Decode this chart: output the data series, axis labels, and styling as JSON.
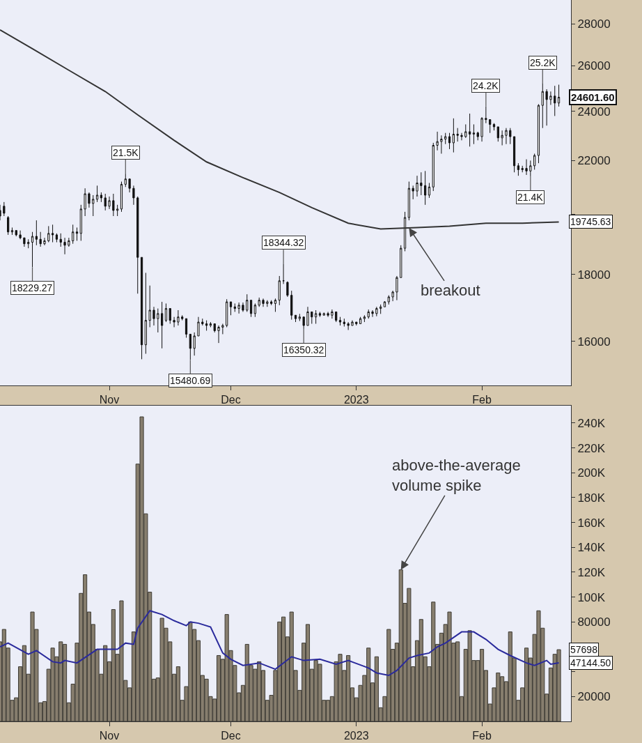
{
  "chart_data": [
    {
      "type": "candlestick",
      "log": true,
      "x": [
        "2022-10-05",
        "2022-10-06",
        "2022-10-07",
        "2022-10-08",
        "2022-10-09",
        "2022-10-10",
        "2022-10-11",
        "2022-10-12",
        "2022-10-13",
        "2022-10-14",
        "2022-10-15",
        "2022-10-16",
        "2022-10-17",
        "2022-10-18",
        "2022-10-19",
        "2022-10-20",
        "2022-10-21",
        "2022-10-22",
        "2022-10-23",
        "2022-10-24",
        "2022-10-25",
        "2022-10-26",
        "2022-10-27",
        "2022-10-28",
        "2022-10-29",
        "2022-10-30",
        "2022-10-31",
        "2022-11-01",
        "2022-11-02",
        "2022-11-03",
        "2022-11-04",
        "2022-11-05",
        "2022-11-06",
        "2022-11-07",
        "2022-11-08",
        "2022-11-09",
        "2022-11-10",
        "2022-11-11",
        "2022-11-12",
        "2022-11-13",
        "2022-11-14",
        "2022-11-15",
        "2022-11-16",
        "2022-11-17",
        "2022-11-18",
        "2022-11-19",
        "2022-11-20",
        "2022-11-21",
        "2022-11-22",
        "2022-11-23",
        "2022-11-24",
        "2022-11-25",
        "2022-11-26",
        "2022-11-27",
        "2022-11-28",
        "2022-11-29",
        "2022-11-30",
        "2022-12-01",
        "2022-12-02",
        "2022-12-03",
        "2022-12-04",
        "2022-12-05",
        "2022-12-06",
        "2022-12-07",
        "2022-12-08",
        "2022-12-09",
        "2022-12-10",
        "2022-12-11",
        "2022-12-12",
        "2022-12-13",
        "2022-12-14",
        "2022-12-15",
        "2022-12-16",
        "2022-12-17",
        "2022-12-18",
        "2022-12-19",
        "2022-12-20",
        "2022-12-21",
        "2022-12-22",
        "2022-12-23",
        "2022-12-24",
        "2022-12-25",
        "2022-12-26",
        "2022-12-27",
        "2022-12-28",
        "2022-12-29",
        "2022-12-30",
        "2022-12-31",
        "2023-01-01",
        "2023-01-02",
        "2023-01-03",
        "2023-01-04",
        "2023-01-05",
        "2023-01-06",
        "2023-01-07",
        "2023-01-08",
        "2023-01-09",
        "2023-01-10",
        "2023-01-11",
        "2023-01-12",
        "2023-01-13",
        "2023-01-14",
        "2023-01-15",
        "2023-01-16",
        "2023-01-17",
        "2023-01-18",
        "2023-01-19",
        "2023-01-20",
        "2023-01-21",
        "2023-01-22",
        "2023-01-23",
        "2023-01-24",
        "2023-01-25",
        "2023-01-26",
        "2023-01-27",
        "2023-01-28",
        "2023-01-29",
        "2023-01-30",
        "2023-01-31",
        "2023-02-01",
        "2023-02-02",
        "2023-02-03",
        "2023-02-04",
        "2023-02-05",
        "2023-02-06",
        "2023-02-07",
        "2023-02-08",
        "2023-02-09",
        "2023-02-10",
        "2023-02-11",
        "2023-02-12",
        "2023-02-13",
        "2023-02-14",
        "2023-02-15",
        "2023-02-16",
        "2023-02-17",
        "2023-02-18",
        "2023-02-19",
        "2023-02-20"
      ],
      "ohlc": [
        [
          20150,
          20350,
          19800,
          19950
        ],
        [
          20300,
          20450,
          19950,
          20050
        ],
        [
          19900,
          19950,
          19300,
          19400
        ],
        [
          19400,
          19550,
          19300,
          19450
        ],
        [
          19450,
          19450,
          19250,
          19300
        ],
        [
          19300,
          19450,
          19150,
          19200
        ],
        [
          19200,
          19200,
          18900,
          19000
        ],
        [
          19000,
          19150,
          18850,
          19050
        ],
        [
          19050,
          19400,
          18229.27,
          19250
        ],
        [
          19250,
          19800,
          18950,
          19150
        ],
        [
          19150,
          19400,
          18900,
          19000
        ],
        [
          19000,
          19200,
          18950,
          19100
        ],
        [
          19100,
          19600,
          19050,
          19350
        ],
        [
          19350,
          19650,
          19050,
          19300
        ],
        [
          19300,
          19350,
          19050,
          19150
        ],
        [
          19150,
          19350,
          18900,
          19050
        ],
        [
          19050,
          19200,
          18650,
          18950
        ],
        [
          18950,
          19200,
          18900,
          19100
        ],
        [
          19100,
          19650,
          19000,
          19400
        ],
        [
          19400,
          19550,
          19100,
          19350
        ],
        [
          19350,
          20350,
          19100,
          20200
        ],
        [
          20200,
          20950,
          19950,
          20750
        ],
        [
          20750,
          20800,
          20250,
          20400
        ],
        [
          20400,
          20700,
          19950,
          20550
        ],
        [
          20550,
          21050,
          20450,
          20700
        ],
        [
          20700,
          20800,
          20450,
          20600
        ],
        [
          20600,
          20750,
          20150,
          20300
        ],
        [
          20300,
          20650,
          20200,
          20500
        ],
        [
          20500,
          20750,
          19950,
          20150
        ],
        [
          20150,
          20350,
          19950,
          20200
        ],
        [
          20200,
          21200,
          20100,
          21100
        ],
        [
          21100,
          21500,
          21000,
          21300
        ],
        [
          21300,
          21300,
          20800,
          20950
        ],
        [
          20950,
          21050,
          20350,
          20600
        ],
        [
          20600,
          20650,
          17400,
          18550
        ],
        [
          18550,
          18550,
          15500,
          15900
        ],
        [
          15900,
          18050,
          15650,
          16600
        ],
        [
          16600,
          17650,
          16400,
          16900
        ],
        [
          16900,
          17000,
          16450,
          16650
        ],
        [
          16650,
          16950,
          16250,
          16800
        ],
        [
          16800,
          17150,
          15800,
          16450
        ],
        [
          16600,
          17100,
          16550,
          16950
        ],
        [
          16950,
          16950,
          16500,
          16600
        ],
        [
          16600,
          16700,
          16400,
          16550
        ],
        [
          16550,
          16900,
          16450,
          16700
        ],
        [
          16700,
          16750,
          16600,
          16650
        ],
        [
          16650,
          16650,
          16100,
          16200
        ],
        [
          16200,
          16200,
          15480.69,
          15800
        ],
        [
          15800,
          16250,
          15600,
          16150
        ],
        [
          16150,
          16700,
          16150,
          16550
        ],
        [
          16550,
          16650,
          16450,
          16500
        ],
        [
          16500,
          16600,
          16300,
          16450
        ],
        [
          16450,
          16550,
          16400,
          16500
        ],
        [
          16500,
          16500,
          16250,
          16300
        ],
        [
          16300,
          16450,
          15950,
          16400
        ],
        [
          16400,
          16500,
          16200,
          16450
        ],
        [
          16450,
          17230,
          16400,
          17150
        ],
        [
          17150,
          17150,
          16750,
          17000
        ],
        [
          17000,
          17100,
          16850,
          16950
        ],
        [
          16950,
          17130,
          16800,
          17050
        ],
        [
          17050,
          17130,
          16850,
          16900
        ],
        [
          16900,
          17380,
          16850,
          17200
        ],
        [
          17200,
          17200,
          16700,
          16800
        ],
        [
          16800,
          17100,
          16700,
          17050
        ],
        [
          17050,
          17280,
          17000,
          17200
        ],
        [
          17200,
          17250,
          17000,
          17100
        ],
        [
          17100,
          17200,
          17000,
          17150
        ],
        [
          17150,
          17200,
          17050,
          17100
        ],
        [
          17100,
          17250,
          16850,
          17200
        ],
        [
          17200,
          17950,
          17050,
          17800
        ],
        [
          17800,
          18344.32,
          17700,
          17800
        ],
        [
          17750,
          17780,
          17300,
          17350
        ],
        [
          17350,
          17490,
          16620,
          16750
        ],
        [
          16750,
          16750,
          16550,
          16650
        ],
        [
          16650,
          16790,
          16580,
          16700
        ],
        [
          16700,
          16700,
          16350.32,
          16450
        ],
        [
          16450,
          17000,
          16450,
          16850
        ],
        [
          16850,
          16850,
          16500,
          16700
        ],
        [
          16700,
          16900,
          16500,
          16800
        ],
        [
          16800,
          16850,
          16700,
          16750
        ],
        [
          16750,
          16830,
          16750,
          16800
        ],
        [
          16800,
          16850,
          16700,
          16750
        ],
        [
          16750,
          16920,
          16650,
          16850
        ],
        [
          16850,
          16850,
          16550,
          16600
        ],
        [
          16600,
          16700,
          16450,
          16550
        ],
        [
          16550,
          16650,
          16420,
          16500
        ],
        [
          16500,
          16550,
          16320,
          16450
        ],
        [
          16450,
          16600,
          16450,
          16550
        ],
        [
          16550,
          16550,
          16450,
          16500
        ],
        [
          16500,
          16700,
          16500,
          16650
        ],
        [
          16650,
          16750,
          16550,
          16700
        ],
        [
          16700,
          16920,
          16650,
          16850
        ],
        [
          16850,
          16900,
          16700,
          16800
        ],
        [
          16800,
          17000,
          16720,
          16950
        ],
        [
          16950,
          17070,
          16790,
          17000
        ],
        [
          17000,
          17170,
          17000,
          17150
        ],
        [
          17150,
          17350,
          17070,
          17300
        ],
        [
          17300,
          17490,
          17170,
          17450
        ],
        [
          17450,
          17950,
          17200,
          17900
        ],
        [
          17900,
          18950,
          17900,
          18850
        ],
        [
          18850,
          20100,
          18750,
          19900
        ],
        [
          19900,
          21200,
          19800,
          20950
        ],
        [
          20950,
          21050,
          20550,
          20850
        ],
        [
          20850,
          21420,
          20650,
          21150
        ],
        [
          21150,
          21550,
          20700,
          21050
        ],
        [
          21050,
          21600,
          20350,
          20700
        ],
        [
          20700,
          21150,
          20600,
          21000
        ],
        [
          21000,
          22700,
          20850,
          22600
        ],
        [
          22600,
          23150,
          22400,
          22750
        ],
        [
          22750,
          23000,
          22270,
          22850
        ],
        [
          22850,
          23100,
          22650,
          22950
        ],
        [
          22950,
          23100,
          22450,
          22700
        ],
        [
          22700,
          23700,
          22320,
          23050
        ],
        [
          23050,
          23300,
          22750,
          23000
        ],
        [
          23000,
          23100,
          22800,
          22950
        ],
        [
          22950,
          23450,
          22900,
          23150
        ],
        [
          23150,
          23900,
          22550,
          23050
        ],
        [
          23050,
          23450,
          22650,
          23100
        ],
        [
          23100,
          23150,
          22800,
          22950
        ],
        [
          22950,
          23750,
          22750,
          23700
        ],
        [
          23700,
          24200,
          23500,
          23650
        ],
        [
          23650,
          23650,
          23100,
          23450
        ],
        [
          23450,
          23500,
          23200,
          23350
        ],
        [
          23350,
          23350,
          22750,
          22900
        ],
        [
          22900,
          23200,
          22600,
          23000
        ],
        [
          23000,
          23300,
          22650,
          23200
        ],
        [
          23200,
          23300,
          22650,
          22950
        ],
        [
          22950,
          22950,
          21550,
          21800
        ],
        [
          21800,
          21900,
          21420,
          21650
        ],
        [
          21650,
          21800,
          21550,
          21700
        ],
        [
          21700,
          22050,
          21450,
          21600
        ],
        [
          21600,
          22000,
          21400,
          21800
        ],
        [
          21800,
          22270,
          21650,
          22200
        ],
        [
          22200,
          24300,
          21900,
          24250
        ],
        [
          24250,
          25200,
          23300,
          24850
        ],
        [
          24850,
          24950,
          23400,
          24500
        ],
        [
          24500,
          24850,
          24270,
          24650
        ],
        [
          24650,
          25100,
          23800,
          24350
        ],
        [
          24350,
          25150,
          24200,
          24601.6
        ]
      ],
      "series": [
        {
          "type": "line",
          "color": "#333333",
          "x": [
            "2022-10-05",
            "2022-10-13",
            "2022-10-22",
            "2022-10-31",
            "2022-11-08",
            "2022-11-17",
            "2022-11-25",
            "2022-12-04",
            "2022-12-13",
            "2022-12-21",
            "2022-12-30",
            "2023-01-07",
            "2023-01-16",
            "2023-01-24",
            "2023-02-02",
            "2023-02-11",
            "2023-02-20"
          ],
          "values": [
            27700,
            26800,
            25800,
            24850,
            23850,
            22800,
            21950,
            21350,
            20800,
            20250,
            19700,
            19500,
            19550,
            19600,
            19700,
            19700,
            19745.63
          ]
        }
      ],
      "xlim": [
        "2022-10-05",
        "2023-02-23"
      ],
      "xticks": [
        {
          "value": "2022-11-01",
          "label": "Nov"
        },
        {
          "value": "2022-12-01",
          "label": "Dec"
        },
        {
          "value": "2023-01-01",
          "label": "2023"
        },
        {
          "value": "2023-02-01",
          "label": "Feb"
        }
      ],
      "ylim": [
        14800,
        29200
      ],
      "yticks": [
        16000,
        18000,
        {
          "value": 20000,
          "label": null
        },
        22000,
        24000,
        26000,
        28000
      ],
      "annotations": [
        {
          "text": "18229.27",
          "x": "2022-10-13",
          "y": 18229.27
        },
        {
          "text": "21.5K",
          "x": "2022-11-05",
          "y": 21500
        },
        {
          "text": "15480.69",
          "x": "2022-11-21",
          "y": 15480.69
        },
        {
          "text": "18344.32",
          "x": "2022-12-14",
          "y": 18344.32
        },
        {
          "text": "16350.32",
          "x": "2022-12-19",
          "y": 16350.32
        },
        {
          "text": "breakout",
          "x": "2023-01-14",
          "y": 19540
        },
        {
          "text": "24.2K",
          "x": "2023-02-02",
          "y": 24200
        },
        {
          "text": "21.4K",
          "x": "2023-02-13",
          "y": 21400
        },
        {
          "text": "25.2K",
          "x": "2023-02-16",
          "y": 25200
        },
        {
          "text": "24601.60",
          "x": "2023-02-20",
          "y": 24601.6
        },
        {
          "text": "19745.63",
          "x": "2023-02-20",
          "y": 19745.63
        }
      ]
    },
    {
      "type": "bar",
      "x": [
        "2022-10-05",
        "2022-10-06",
        "2022-10-07",
        "2022-10-08",
        "2022-10-09",
        "2022-10-10",
        "2022-10-11",
        "2022-10-12",
        "2022-10-13",
        "2022-10-14",
        "2022-10-15",
        "2022-10-16",
        "2022-10-17",
        "2022-10-18",
        "2022-10-19",
        "2022-10-20",
        "2022-10-21",
        "2022-10-22",
        "2022-10-23",
        "2022-10-24",
        "2022-10-25",
        "2022-10-26",
        "2022-10-27",
        "2022-10-28",
        "2022-10-29",
        "2022-10-30",
        "2022-10-31",
        "2022-11-01",
        "2022-11-02",
        "2022-11-03",
        "2022-11-04",
        "2022-11-05",
        "2022-11-06",
        "2022-11-07",
        "2022-11-08",
        "2022-11-09",
        "2022-11-10",
        "2022-11-11",
        "2022-11-12",
        "2022-11-13",
        "2022-11-14",
        "2022-11-15",
        "2022-11-16",
        "2022-11-17",
        "2022-11-18",
        "2022-11-19",
        "2022-11-20",
        "2022-11-21",
        "2022-11-22",
        "2022-11-23",
        "2022-11-24",
        "2022-11-25",
        "2022-11-26",
        "2022-11-27",
        "2022-11-28",
        "2022-11-29",
        "2022-11-30",
        "2022-12-01",
        "2022-12-02",
        "2022-12-03",
        "2022-12-04",
        "2022-12-05",
        "2022-12-06",
        "2022-12-07",
        "2022-12-08",
        "2022-12-09",
        "2022-12-10",
        "2022-12-11",
        "2022-12-12",
        "2022-12-13",
        "2022-12-14",
        "2022-12-15",
        "2022-12-16",
        "2022-12-17",
        "2022-12-18",
        "2022-12-19",
        "2022-12-20",
        "2022-12-21",
        "2022-12-22",
        "2022-12-23",
        "2022-12-24",
        "2022-12-25",
        "2022-12-26",
        "2022-12-27",
        "2022-12-28",
        "2022-12-29",
        "2022-12-30",
        "2022-12-31",
        "2023-01-01",
        "2023-01-02",
        "2023-01-03",
        "2023-01-04",
        "2023-01-05",
        "2023-01-06",
        "2023-01-07",
        "2023-01-08",
        "2023-01-09",
        "2023-01-10",
        "2023-01-11",
        "2023-01-12",
        "2023-01-13",
        "2023-01-14",
        "2023-01-15",
        "2023-01-16",
        "2023-01-17",
        "2023-01-18",
        "2023-01-19",
        "2023-01-20",
        "2023-01-21",
        "2023-01-22",
        "2023-01-23",
        "2023-01-24",
        "2023-01-25",
        "2023-01-26",
        "2023-01-27",
        "2023-01-28",
        "2023-01-29",
        "2023-01-30",
        "2023-01-31",
        "2023-02-01",
        "2023-02-02",
        "2023-02-03",
        "2023-02-04",
        "2023-02-05",
        "2023-02-06",
        "2023-02-07",
        "2023-02-08",
        "2023-02-09",
        "2023-02-10",
        "2023-02-11",
        "2023-02-12",
        "2023-02-13",
        "2023-02-14",
        "2023-02-15",
        "2023-02-16",
        "2023-02-17",
        "2023-02-18",
        "2023-02-19",
        "2023-02-20"
      ],
      "series": [
        {
          "color": "#877e6e",
          "values": [
            64000,
            74000,
            59000,
            17000,
            19000,
            44000,
            61000,
            38000,
            88000,
            74000,
            15000,
            16000,
            42000,
            59000,
            52000,
            64000,
            62000,
            15000,
            30000,
            63000,
            103000,
            118000,
            88000,
            78000,
            58000,
            38000,
            61000,
            48000,
            90000,
            54000,
            97000,
            33000,
            27000,
            72000,
            207000,
            245000,
            167000,
            104000,
            34000,
            35000,
            83000,
            75000,
            64000,
            38000,
            44000,
            17000,
            28000,
            80000,
            74000,
            65000,
            37000,
            34000,
            20000,
            18000,
            53000,
            50000,
            86000,
            57000,
            45000,
            23000,
            29000,
            62000,
            45000,
            42000,
            48000,
            41000,
            17000,
            21000,
            41000,
            80000,
            84000,
            68000,
            88000,
            41000,
            25000,
            63000,
            78000,
            42000,
            49000,
            46000,
            17000,
            17000,
            20000,
            48000,
            54000,
            41000,
            53000,
            27000,
            19000,
            29000,
            37000,
            59000,
            31000,
            52000,
            11000,
            20000,
            74000,
            58000,
            63000,
            122000,
            95000,
            107000,
            44000,
            65000,
            82000,
            52000,
            44000,
            96000,
            62000,
            71000,
            78000,
            88000,
            63000,
            64000,
            20000,
            58000,
            73000,
            49000,
            49000,
            58000,
            41000,
            14000,
            27000,
            39000,
            36000,
            32000,
            72000,
            51000,
            17000,
            27000,
            59000,
            51000,
            70000,
            89000,
            75000,
            22000,
            43000,
            54000,
            57698
          ]
        },
        {
          "type": "line",
          "color": "#2a2a9c",
          "x": [
            "2022-10-05",
            "2022-10-07",
            "2022-10-12",
            "2022-10-14",
            "2022-10-18",
            "2022-10-20",
            "2022-10-21",
            "2022-10-24",
            "2022-10-29",
            "2022-11-03",
            "2022-11-05",
            "2022-11-07",
            "2022-11-08",
            "2022-11-11",
            "2022-11-14",
            "2022-11-17",
            "2022-11-20",
            "2022-11-21",
            "2022-11-23",
            "2022-11-26",
            "2022-11-29",
            "2022-12-01",
            "2022-12-04",
            "2022-12-08",
            "2022-12-12",
            "2022-12-16",
            "2022-12-19",
            "2022-12-23",
            "2022-12-27",
            "2022-12-30",
            "2023-01-04",
            "2023-01-06",
            "2023-01-09",
            "2023-01-11",
            "2023-01-14",
            "2023-01-16",
            "2023-01-19",
            "2023-01-21",
            "2023-01-23",
            "2023-01-27",
            "2023-01-30",
            "2023-02-02",
            "2023-02-05",
            "2023-02-08",
            "2023-02-12",
            "2023-02-14",
            "2023-02-17",
            "2023-02-18",
            "2023-02-20"
          ],
          "values": [
            60000,
            63000,
            54000,
            57000,
            48000,
            47000,
            49000,
            47000,
            58000,
            58000,
            63000,
            62000,
            75000,
            89000,
            86000,
            81000,
            77000,
            80000,
            79000,
            76000,
            55000,
            50000,
            45000,
            47000,
            42000,
            52000,
            49000,
            50000,
            46000,
            49000,
            43000,
            39000,
            37000,
            41000,
            51000,
            53000,
            55000,
            60000,
            63000,
            72000,
            72000,
            66000,
            58000,
            53000,
            47000,
            45000,
            49000,
            46000,
            47144.5
          ]
        }
      ],
      "xlim": [
        "2022-10-05",
        "2023-02-23"
      ],
      "xticks": [
        {
          "value": "2022-11-01",
          "label": "Nov"
        },
        {
          "value": "2022-12-01",
          "label": "Dec"
        },
        {
          "value": "2023-01-01",
          "label": "2023"
        },
        {
          "value": "2023-02-01",
          "label": "Feb"
        }
      ],
      "ylim": [
        0,
        254000
      ],
      "yticks": [
        20000,
        {
          "value": 40000,
          "label": null
        },
        {
          "value": 60000,
          "label": null
        },
        80000,
        {
          "value": 100000,
          "label": "100K"
        },
        {
          "value": 120000,
          "label": "120K"
        },
        {
          "value": 140000,
          "label": "140K"
        },
        {
          "value": 160000,
          "label": "160K"
        },
        {
          "value": 180000,
          "label": "180K"
        },
        {
          "value": 200000,
          "label": "200K"
        },
        {
          "value": 220000,
          "label": "220K"
        },
        {
          "value": 240000,
          "label": "240K"
        }
      ],
      "annotations": [
        {
          "text": "above-the-average\nvolume spike",
          "x": "2023-01-12",
          "y": 122000
        },
        {
          "text": "57698",
          "x": "2023-02-20",
          "y": 57698
        },
        {
          "text": "47144.50",
          "x": "2023-02-20",
          "y": 47144.5
        }
      ]
    }
  ]
}
